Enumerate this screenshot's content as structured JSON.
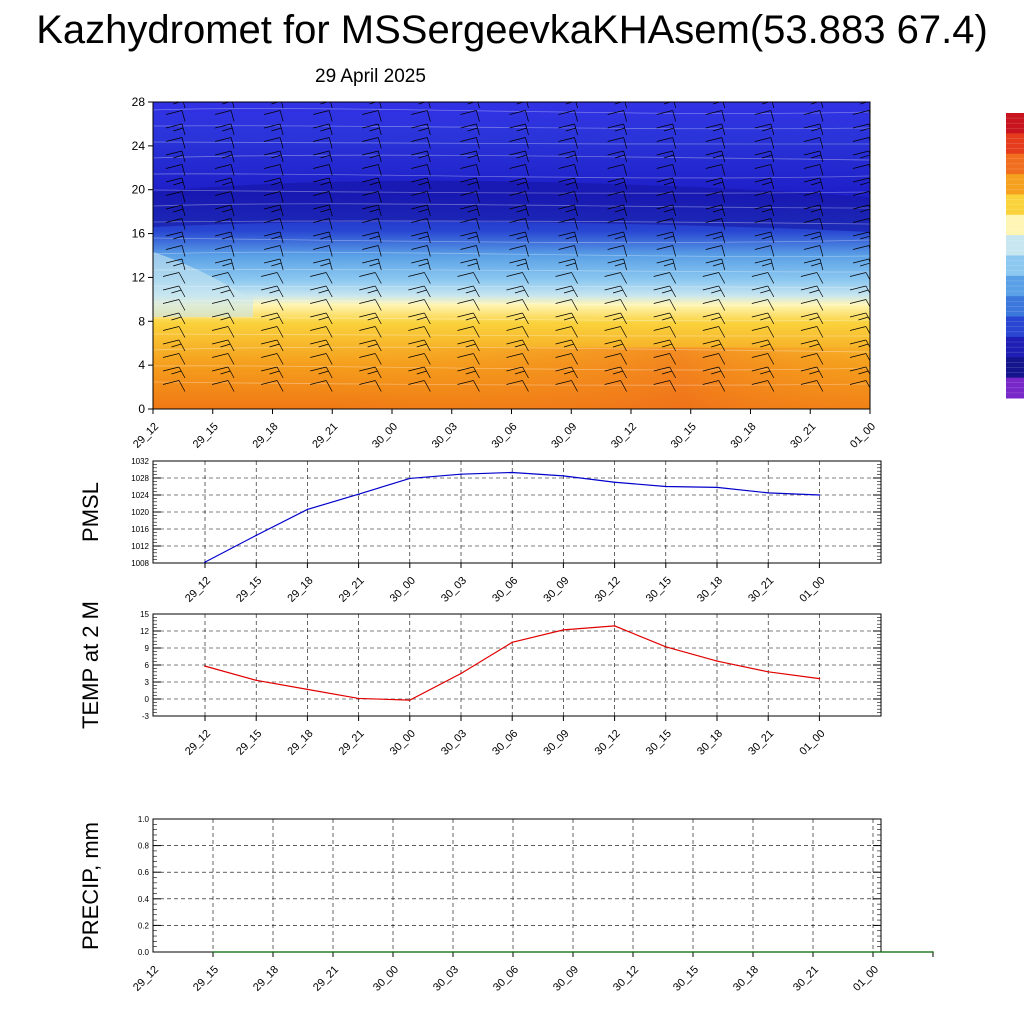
{
  "title": "Kazhydromet for MSSergeevkaKHAsem(53.883 67.4)",
  "subtitle": "29 April 2025",
  "colors": {
    "pmsl_line": "#0000cc",
    "temp_line": "#e00000",
    "precip_line": "#006400",
    "grid": "#000000"
  },
  "chart_data": [
    {
      "type": "heatmap",
      "title": "",
      "ylim": [
        0,
        28
      ],
      "y_ticks": [
        "0",
        "4",
        "8",
        "12",
        "16",
        "20",
        "24",
        "28"
      ],
      "x_ticks": [
        "29_12",
        "29_15",
        "29_18",
        "29_21",
        "30_00",
        "30_03",
        "30_06",
        "30_09",
        "30_12",
        "30_15",
        "30_18",
        "30_21",
        "01_00"
      ],
      "overlay": "wind barbs",
      "colorbar": [
        "#c8141e",
        "#e63c1e",
        "#f06e1e",
        "#f5a01e",
        "#fad23c",
        "#fff5b4",
        "#c8e6f0",
        "#8cc8f0",
        "#5aa0e6",
        "#3c78dc",
        "#2846d2",
        "#1e1eb4",
        "#14148c",
        "#7828c8"
      ]
    },
    {
      "type": "line",
      "ylabel": "PMSL",
      "ylim": [
        1008,
        1032
      ],
      "y_ticks": [
        "1008",
        "1012",
        "1016",
        "1020",
        "1024",
        "1028",
        "1032"
      ],
      "x_ticks": [
        "29_12",
        "29_15",
        "29_18",
        "29_21",
        "30_00",
        "30_03",
        "30_06",
        "30_09",
        "30_12",
        "30_15",
        "30_18",
        "30_21",
        "01_00"
      ],
      "series": [
        {
          "values": [
            1008.2,
            1014.5,
            1020.6,
            1024.2,
            1027.9,
            1028.9,
            1029.3,
            1028.5,
            1027.0,
            1026.0,
            1025.8,
            1024.5,
            1024.0
          ]
        }
      ],
      "grid": true
    },
    {
      "type": "line",
      "ylabel": "TEMP at 2 M",
      "ylim": [
        -3,
        15
      ],
      "y_ticks": [
        "-3",
        "0",
        "3",
        "6",
        "9",
        "12",
        "15"
      ],
      "x_ticks": [
        "29_12",
        "29_15",
        "29_18",
        "29_21",
        "30_00",
        "30_03",
        "30_06",
        "30_09",
        "30_12",
        "30_15",
        "30_18",
        "30_21",
        "01_00"
      ],
      "series": [
        {
          "values": [
            5.8,
            3.3,
            1.7,
            0.1,
            -0.2,
            4.5,
            10.0,
            12.2,
            12.9,
            9.2,
            6.7,
            4.8,
            3.6
          ]
        }
      ],
      "grid": true
    },
    {
      "type": "line",
      "ylabel": "PRECIP, mm",
      "ylim": [
        0,
        1
      ],
      "y_ticks": [
        "0.0",
        "0.2",
        "0.4",
        "0.6",
        "0.8",
        "1.0"
      ],
      "x_ticks": [
        "29_12",
        "29_15",
        "29_18",
        "29_21",
        "30_00",
        "30_03",
        "30_06",
        "30_09",
        "30_12",
        "30_15",
        "30_18",
        "30_21",
        "01_00"
      ],
      "series": [
        {
          "values": [
            0,
            0,
            0,
            0,
            0,
            0,
            0,
            0,
            0,
            0,
            0,
            0,
            0
          ]
        }
      ],
      "grid": true
    }
  ]
}
